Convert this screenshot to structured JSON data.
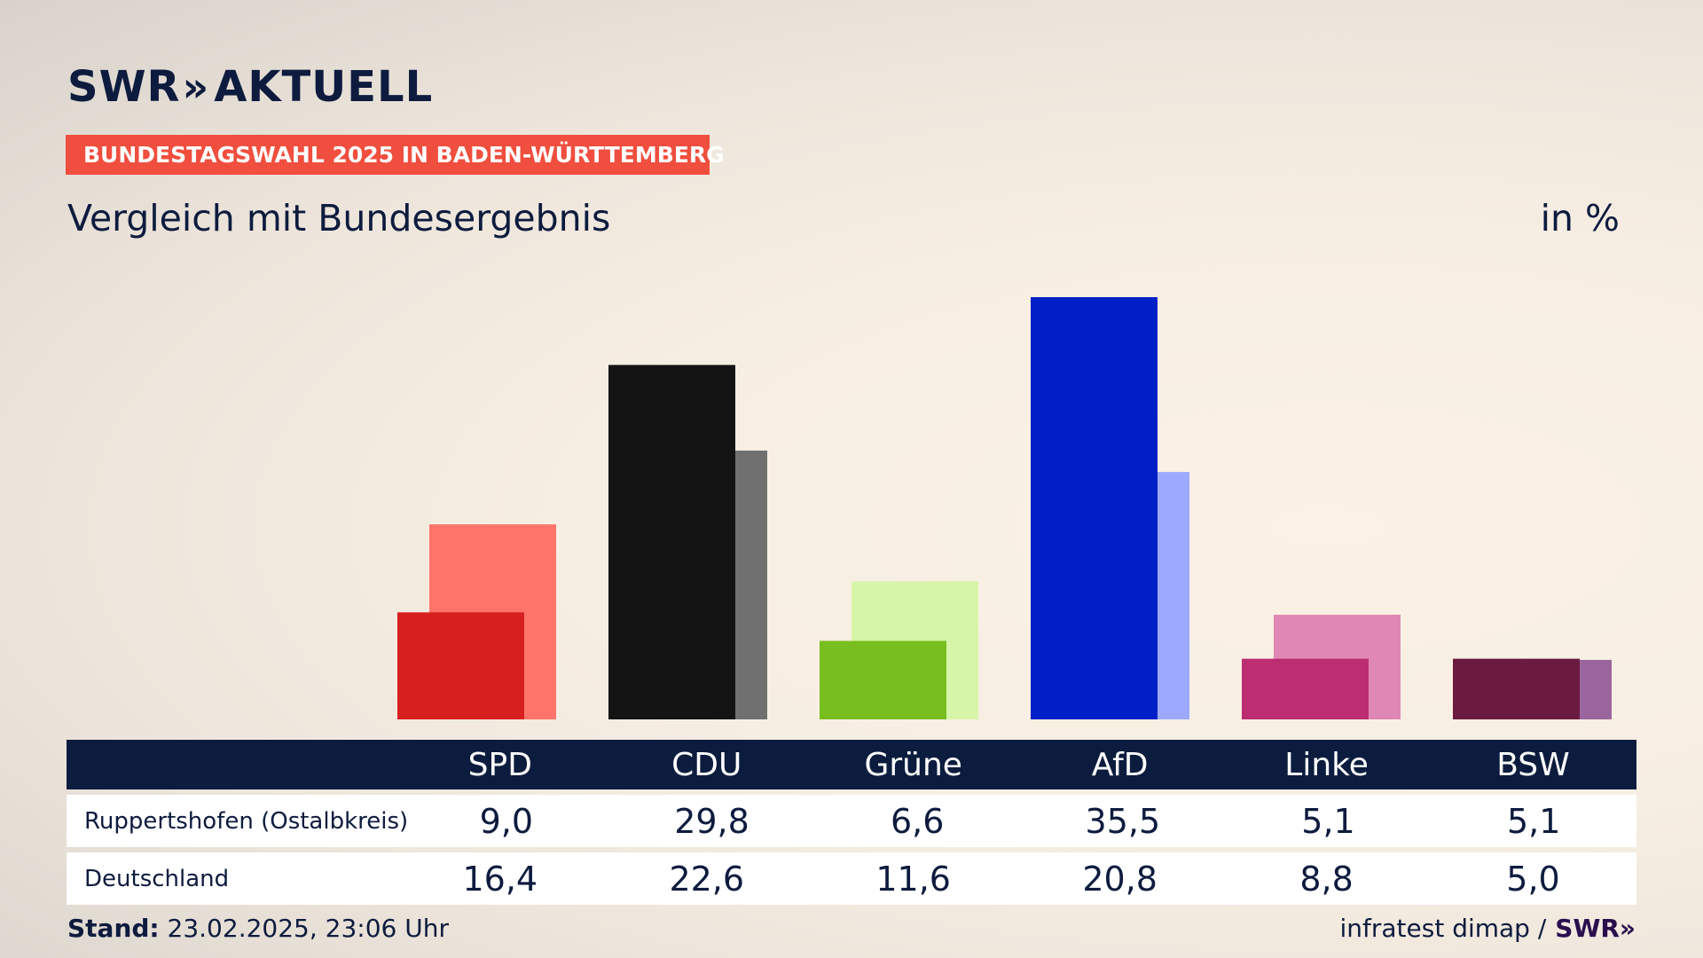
{
  "header": {
    "logo_text": "SWR",
    "logo_chevrons": "»",
    "logo_suffix": "AKTUELL",
    "kicker": "BUNDESTAGSWAHL 2025 IN BADEN-WÜRTTEMBERG",
    "subtitle": "Vergleich mit Bundesergebnis",
    "unit": "in %"
  },
  "chart_data": {
    "type": "bar",
    "title": "Vergleich mit Bundesergebnis",
    "unit": "in %",
    "categories": [
      "SPD",
      "CDU",
      "Grüne",
      "AfD",
      "Linke",
      "BSW"
    ],
    "series": [
      {
        "name": "Ruppertshofen (Ostalbkreis)",
        "values": [
          9.0,
          29.8,
          6.6,
          35.5,
          5.1,
          5.1
        ],
        "labels": [
          "9,0",
          "29,8",
          "6,6",
          "35,5",
          "5,1",
          "5,1"
        ],
        "colors": [
          "#d81f1f",
          "#141414",
          "#78be1e",
          "#001fc7",
          "#bd2d72",
          "#6b1a40"
        ]
      },
      {
        "name": "Deutschland",
        "values": [
          16.4,
          22.6,
          11.6,
          20.8,
          8.8,
          5.0
        ],
        "labels": [
          "16,4",
          "22,6",
          "11,6",
          "20,8",
          "8,8",
          "5,0"
        ],
        "colors": [
          "#ff746a",
          "#707070",
          "#d7f5a9",
          "#9ba9ff",
          "#e088b5",
          "#9a649d"
        ]
      }
    ],
    "ylim": [
      0,
      37
    ]
  },
  "table": {
    "header_label": "",
    "rows": [
      {
        "label": "Ruppertshofen (Ostalbkreis)",
        "values": [
          "9,0",
          "29,8",
          "6,6",
          "35,5",
          "5,1",
          "5,1"
        ]
      },
      {
        "label": "Deutschland",
        "values": [
          "16,4",
          "22,6",
          "11,6",
          "20,8",
          "8,8",
          "5,0"
        ]
      }
    ]
  },
  "footer": {
    "stand_label": "Stand:",
    "stand_value": "23.02.2025, 23:06 Uhr",
    "source": "infratest dimap /",
    "source_logo": "SWR»"
  }
}
